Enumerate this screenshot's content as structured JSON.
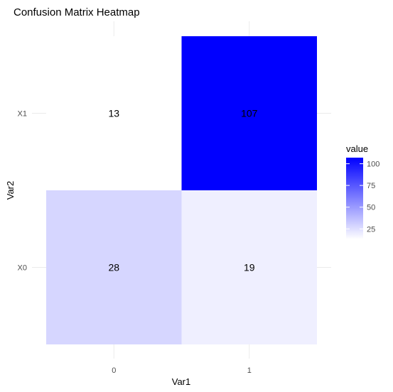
{
  "chart_data": {
    "type": "heatmap",
    "title": "Confusion Matrix Heatmap",
    "xlabel": "Var1",
    "ylabel": "Var2",
    "x_categories": [
      "0",
      "1"
    ],
    "y_categories": [
      "X0",
      "X1"
    ],
    "cells": [
      {
        "x": "0",
        "y": "X1",
        "value": 13
      },
      {
        "x": "1",
        "y": "X1",
        "value": 107
      },
      {
        "x": "0",
        "y": "X0",
        "value": 28
      },
      {
        "x": "1",
        "y": "X0",
        "value": 19
      }
    ],
    "legend": {
      "title": "value",
      "ticks": [
        25,
        50,
        75,
        100
      ],
      "range": [
        13,
        107
      ],
      "low_color": "#ffffff",
      "high_color": "#0000ff"
    },
    "grid": true,
    "legend_position": "right"
  }
}
